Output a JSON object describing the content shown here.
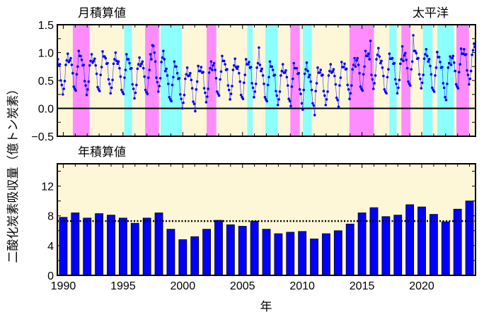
{
  "chart_data": [
    {
      "type": "line",
      "title": "月積算値",
      "region_label": "太平洋",
      "ylabel": "二酸化炭素吸収量（億トン炭素）",
      "xlim": [
        1989.5,
        2024.5
      ],
      "ylim": [
        -0.5,
        1.5
      ],
      "yticks": [
        "−0.5",
        "0.0",
        "0.5",
        "1.0",
        "1.5"
      ],
      "ytick_values": [
        -0.5,
        0,
        0.5,
        1.0,
        1.5
      ],
      "zero_line": true,
      "background_color": "#fdf7d8",
      "series_color": "#0000ff",
      "shading": {
        "el_nino_color": "#ff8cff",
        "la_nina_color": "#8cffff",
        "periods": [
          {
            "type": "el_nino",
            "start": 1990.8,
            "end": 1992.2
          },
          {
            "type": "la_nina",
            "start": 1995.1,
            "end": 1995.75
          },
          {
            "type": "el_nino",
            "start": 1996.85,
            "end": 1998.0
          },
          {
            "type": "la_nina",
            "start": 1998.15,
            "end": 1999.9
          },
          {
            "type": "el_nino",
            "start": 2002.0,
            "end": 2002.8
          },
          {
            "type": "la_nina",
            "start": 2005.4,
            "end": 2005.85
          },
          {
            "type": "la_nina",
            "start": 2006.9,
            "end": 2007.95
          },
          {
            "type": "el_nino",
            "start": 2009.0,
            "end": 2009.8
          },
          {
            "type": "la_nina",
            "start": 2010.05,
            "end": 2010.8
          },
          {
            "type": "el_nino",
            "start": 2013.95,
            "end": 2016.0
          },
          {
            "type": "la_nina",
            "start": 2017.3,
            "end": 2017.9
          },
          {
            "type": "el_nino",
            "start": 2018.3,
            "end": 2019.05
          },
          {
            "type": "la_nina",
            "start": 2020.1,
            "end": 2020.9
          },
          {
            "type": "la_nina",
            "start": 2021.3,
            "end": 2022.7
          },
          {
            "type": "el_nino",
            "start": 2022.9,
            "end": 2023.95
          }
        ]
      },
      "monthly": {
        "1990": [
          0.88,
          0.78,
          0.79,
          0.5,
          0.42,
          0.25,
          0.35,
          0.49,
          0.78,
          0.86,
          0.98,
          0.83
        ],
        "1991": [
          0.86,
          0.9,
          0.78,
          0.63,
          0.39,
          0.35,
          0.32,
          0.61,
          0.75,
          1.03,
          0.94,
          0.94
        ],
        "1992": [
          0.87,
          0.77,
          0.78,
          0.49,
          0.41,
          0.24,
          0.34,
          0.48,
          0.77,
          0.85,
          0.97,
          0.82
        ],
        "1993": [
          0.85,
          0.89,
          0.77,
          0.62,
          0.38,
          0.34,
          0.31,
          0.6,
          0.74,
          1.02,
          0.93,
          0.93
        ],
        "1994": [
          0.9,
          0.8,
          0.81,
          0.52,
          0.44,
          0.27,
          0.37,
          0.51,
          0.8,
          0.88,
          1.0,
          0.85
        ],
        "1995": [
          0.8,
          0.84,
          0.72,
          0.57,
          0.33,
          0.29,
          0.26,
          0.55,
          0.69,
          0.97,
          0.88,
          0.88
        ],
        "1996": [
          0.81,
          0.71,
          0.72,
          0.43,
          0.35,
          0.18,
          0.28,
          0.42,
          0.71,
          0.79,
          0.91,
          0.76
        ],
        "1997": [
          0.8,
          0.84,
          0.72,
          0.57,
          0.33,
          0.29,
          0.26,
          0.55,
          0.69,
          0.97,
          0.88,
          1.13
        ],
        "1998": [
          1.12,
          1.0,
          0.84,
          0.55,
          0.47,
          0.3,
          0.4,
          0.54,
          0.83,
          0.91,
          1.03,
          0.88
        ],
        "1999": [
          0.67,
          0.71,
          0.59,
          0.44,
          0.2,
          0.16,
          0.13,
          0.42,
          0.56,
          0.84,
          0.75,
          0.75
        ],
        "2000": [
          0.63,
          0.53,
          0.54,
          0.25,
          0.17,
          0.0,
          0.1,
          0.24,
          0.53,
          0.61,
          0.73,
          0.58
        ],
        "2001": [
          0.59,
          0.63,
          0.51,
          0.36,
          0.12,
          0.08,
          -0.05,
          0.34,
          0.48,
          0.76,
          0.67,
          0.67
        ],
        "2002": [
          0.74,
          0.64,
          0.65,
          0.36,
          0.28,
          0.11,
          0.21,
          0.35,
          0.64,
          0.72,
          0.84,
          0.69
        ],
        "2003": [
          0.77,
          0.81,
          0.69,
          0.54,
          0.3,
          0.26,
          0.23,
          0.52,
          0.66,
          0.94,
          0.85,
          0.85
        ],
        "2004": [
          0.79,
          0.69,
          0.7,
          0.41,
          0.33,
          0.16,
          0.26,
          0.4,
          0.69,
          0.77,
          0.89,
          0.74
        ],
        "2005": [
          0.71,
          0.75,
          0.63,
          0.48,
          0.24,
          0.2,
          0.17,
          0.46,
          0.6,
          0.88,
          0.79,
          0.79
        ],
        "2006": [
          0.83,
          0.73,
          0.74,
          0.45,
          0.37,
          0.2,
          0.3,
          0.44,
          0.73,
          0.81,
          1.09,
          0.78
        ],
        "2007": [
          0.67,
          0.71,
          0.59,
          0.44,
          0.2,
          0.16,
          0.13,
          0.42,
          0.56,
          0.84,
          0.75,
          0.75
        ],
        "2008": [
          0.69,
          0.59,
          0.6,
          0.31,
          0.23,
          0.06,
          0.16,
          0.3,
          0.59,
          0.67,
          0.79,
          0.64
        ],
        "2009": [
          0.64,
          0.68,
          0.56,
          0.41,
          0.17,
          0.13,
          0.04,
          0.39,
          0.53,
          0.81,
          0.72,
          0.72
        ],
        "2010": [
          0.72,
          0.62,
          0.63,
          0.34,
          0.26,
          0.09,
          -0.02,
          0.33,
          0.62,
          0.7,
          0.82,
          0.67
        ],
        "2011": [
          0.56,
          0.6,
          0.48,
          0.33,
          0.09,
          0.05,
          -0.12,
          0.31,
          0.45,
          0.73,
          0.64,
          0.64
        ],
        "2012": [
          0.69,
          0.59,
          0.6,
          0.31,
          0.23,
          0.06,
          0.16,
          0.3,
          0.59,
          0.67,
          0.79,
          0.64
        ],
        "2013": [
          0.66,
          0.7,
          0.58,
          0.43,
          0.19,
          0.15,
          0.03,
          0.41,
          0.55,
          0.83,
          0.74,
          0.74
        ],
        "2014": [
          0.8,
          0.7,
          0.71,
          0.42,
          0.34,
          0.17,
          0.27,
          0.41,
          0.7,
          0.78,
          0.9,
          0.75
        ],
        "2015": [
          0.86,
          0.9,
          0.78,
          0.63,
          0.39,
          0.35,
          0.32,
          0.61,
          0.75,
          1.03,
          0.94,
          0.94
        ],
        "2016": [
          0.98,
          0.88,
          1.21,
          0.6,
          0.52,
          0.35,
          0.45,
          0.59,
          0.88,
          0.96,
          1.08,
          0.93
        ],
        "2017": [
          0.81,
          0.85,
          0.73,
          0.58,
          0.34,
          0.3,
          0.27,
          0.56,
          0.7,
          0.98,
          0.89,
          0.89
        ],
        "2018": [
          0.9,
          0.8,
          0.81,
          0.52,
          0.44,
          0.27,
          0.37,
          0.51,
          0.8,
          0.88,
          1.11,
          0.85
        ],
        "2019": [
          0.95,
          0.99,
          0.87,
          0.72,
          0.48,
          0.44,
          0.41,
          0.7,
          0.84,
          1.31,
          1.03,
          1.03
        ],
        "2020": [
          0.99,
          0.89,
          0.9,
          0.61,
          0.53,
          0.36,
          0.46,
          0.6,
          0.89,
          0.97,
          1.06,
          0.94
        ],
        "2021": [
          0.84,
          0.88,
          0.76,
          0.61,
          0.37,
          0.33,
          0.3,
          0.59,
          0.73,
          1.01,
          0.92,
          0.92
        ],
        "2022": [
          0.83,
          0.73,
          0.74,
          0.45,
          0.37,
          0.2,
          0.15,
          0.44,
          0.73,
          0.81,
          0.93,
          0.78
        ],
        "2023": [
          0.9,
          0.94,
          0.82,
          0.67,
          0.43,
          0.39,
          0.36,
          0.65,
          0.79,
          1.07,
          0.98,
          0.98
        ],
        "2024": [
          1.06,
          0.96,
          0.97,
          0.68,
          0.6,
          0.43,
          0.53,
          0.67,
          0.96,
          1.04,
          1.16,
          1.1
        ]
      }
    },
    {
      "type": "bar",
      "title": "年積算値",
      "xlabel": "年",
      "xlim": [
        1989.5,
        2024.5
      ],
      "ylim": [
        0,
        15
      ],
      "yticks": [
        "0",
        "4",
        "8",
        "12"
      ],
      "ytick_values": [
        0,
        4,
        8,
        12
      ],
      "xticks": [
        "1990",
        "1995",
        "2000",
        "2005",
        "2010",
        "2015",
        "2020"
      ],
      "xtick_values": [
        1990,
        1995,
        2000,
        2005,
        2010,
        2015,
        2020
      ],
      "background_color": "#fdf7d8",
      "bar_color": "#0000ff",
      "mean_line": 7.3,
      "categories": [
        1990,
        1991,
        1992,
        1993,
        1994,
        1995,
        1996,
        1997,
        1998,
        1999,
        2000,
        2001,
        2002,
        2003,
        2004,
        2005,
        2006,
        2007,
        2008,
        2009,
        2010,
        2011,
        2012,
        2013,
        2014,
        2015,
        2016,
        2017,
        2018,
        2019,
        2020,
        2021,
        2022,
        2023,
        2024
      ],
      "values": [
        7.8,
        8.4,
        7.7,
        8.3,
        8.1,
        7.7,
        7.0,
        7.7,
        8.4,
        6.2,
        4.8,
        5.2,
        6.2,
        7.4,
        6.8,
        6.6,
        7.3,
        6.2,
        5.6,
        5.8,
        5.9,
        4.9,
        5.6,
        6.0,
        6.9,
        8.4,
        9.1,
        7.9,
        8.1,
        9.5,
        9.2,
        8.2,
        7.2,
        8.9,
        10.0
      ]
    }
  ]
}
